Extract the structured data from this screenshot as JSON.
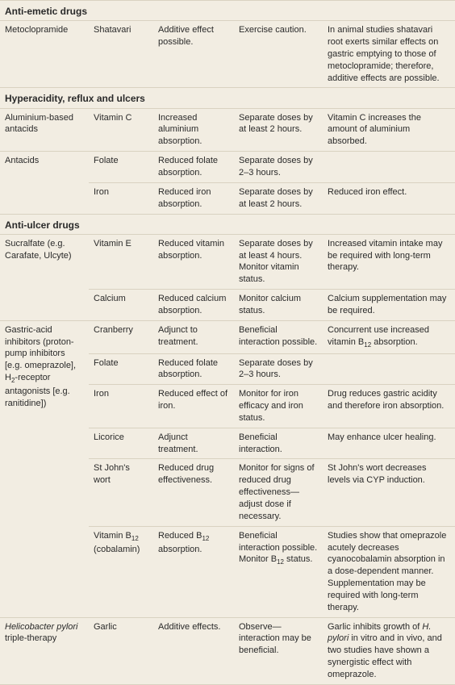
{
  "sections": [
    {
      "title": "Anti-emetic drugs",
      "rows": [
        {
          "c1": "Metoclopramide",
          "c2": "Shatavari",
          "c3": "Additive effect possible.",
          "c4": "Exercise caution.",
          "c5": "In animal studies shatavari root exerts similar effects on gastric emptying to those of metoclopramide; therefore, additive effects are possible."
        }
      ]
    },
    {
      "title": "Hyperacidity, reflux and ulcers",
      "rows": [
        {
          "c1": "Aluminium-based antacids",
          "c2": "Vitamin C",
          "c3": "Increased aluminium absorption.",
          "c4": "Separate doses by at least 2 hours.",
          "c5": "Vitamin C increases the amount of aluminium absorbed."
        },
        {
          "c1": "Antacids",
          "c2": "Folate",
          "c3": "Reduced folate absorption.",
          "c4": "Separate doses by 2–3 hours.",
          "c5": "",
          "c1rowspan": 2
        },
        {
          "c2": "Iron",
          "c3": "Reduced iron absorption.",
          "c4": "Separate doses by at least 2 hours.",
          "c5": "Reduced iron effect."
        }
      ]
    },
    {
      "title_html": "<b>Anti-ulcer drug</b>s",
      "rows": [
        {
          "c1": "Sucralfate (e.g. Carafate, Ulcyte)",
          "c2": "Vitamin E",
          "c3": "Reduced vitamin absorption.",
          "c4": "Separate doses by at least 4 hours. Monitor vitamin status.",
          "c5": "Increased vitamin intake may be required with long-term therapy.",
          "c1rowspan": 2
        },
        {
          "c2": "Calcium",
          "c3": "Reduced calcium absorption.",
          "c4": "Monitor calcium status.",
          "c5": "Calcium supplementation may be required."
        },
        {
          "c1_html": "Gastric-acid inhibitors (proton-pump inhibitors [e.g. omeprazole], H<span class=\"sub\">2</span>-receptor antagonists [e.g. ranitidine])",
          "c2": "Cranberry",
          "c3": "Adjunct to treatment.",
          "c4": "Beneficial interaction possible.",
          "c5_html": "Concurrent use increased vitamin B<span class=\"sub\">12</span> absorption.",
          "c1rowspan": 6
        },
        {
          "c2": "Folate",
          "c3": "Reduced folate absorption.",
          "c4": "Separate doses by 2–3 hours.",
          "c5": ""
        },
        {
          "c2": "Iron",
          "c3": "Reduced effect of iron.",
          "c4": "Monitor for iron efficacy and iron status.",
          "c5": "Drug reduces gastric acidity and therefore iron absorption."
        },
        {
          "c2": "Licorice",
          "c3": "Adjunct treatment.",
          "c4": "Beneficial interaction.",
          "c5": "May enhance ulcer healing."
        },
        {
          "c2": "St John's wort",
          "c3": "Reduced drug effectiveness.",
          "c4": "Monitor for signs of reduced drug effectiveness—adjust dose if necessary.",
          "c5": "St John's wort decreases levels via CYP induction."
        },
        {
          "c2_html": "Vitamin B<span class=\"sub\">12</span> (cobalamin)",
          "c3_html": "Reduced B<span class=\"sub\">12</span> absorption.",
          "c4_html": "Beneficial interaction possible. Monitor B<span class=\"sub\">12</span> status.",
          "c5": "Studies show that omeprazole acutely decreases cyanocobalamin absorption in a dose-dependent manner. Supplementation may be required with long-term therapy."
        },
        {
          "c1_html": "<span class=\"italic\">Helicobacter pylori</span> triple-therapy",
          "c2": "Garlic",
          "c3": "Additive effects.",
          "c4": "Observe—interaction may be beneficial.",
          "c5_html": "Garlic inhibits growth of <span class=\"italic\">H. pylori</span> in vitro and in vivo, and two studies have shown a synergistic effect with omeprazole."
        }
      ]
    }
  ]
}
